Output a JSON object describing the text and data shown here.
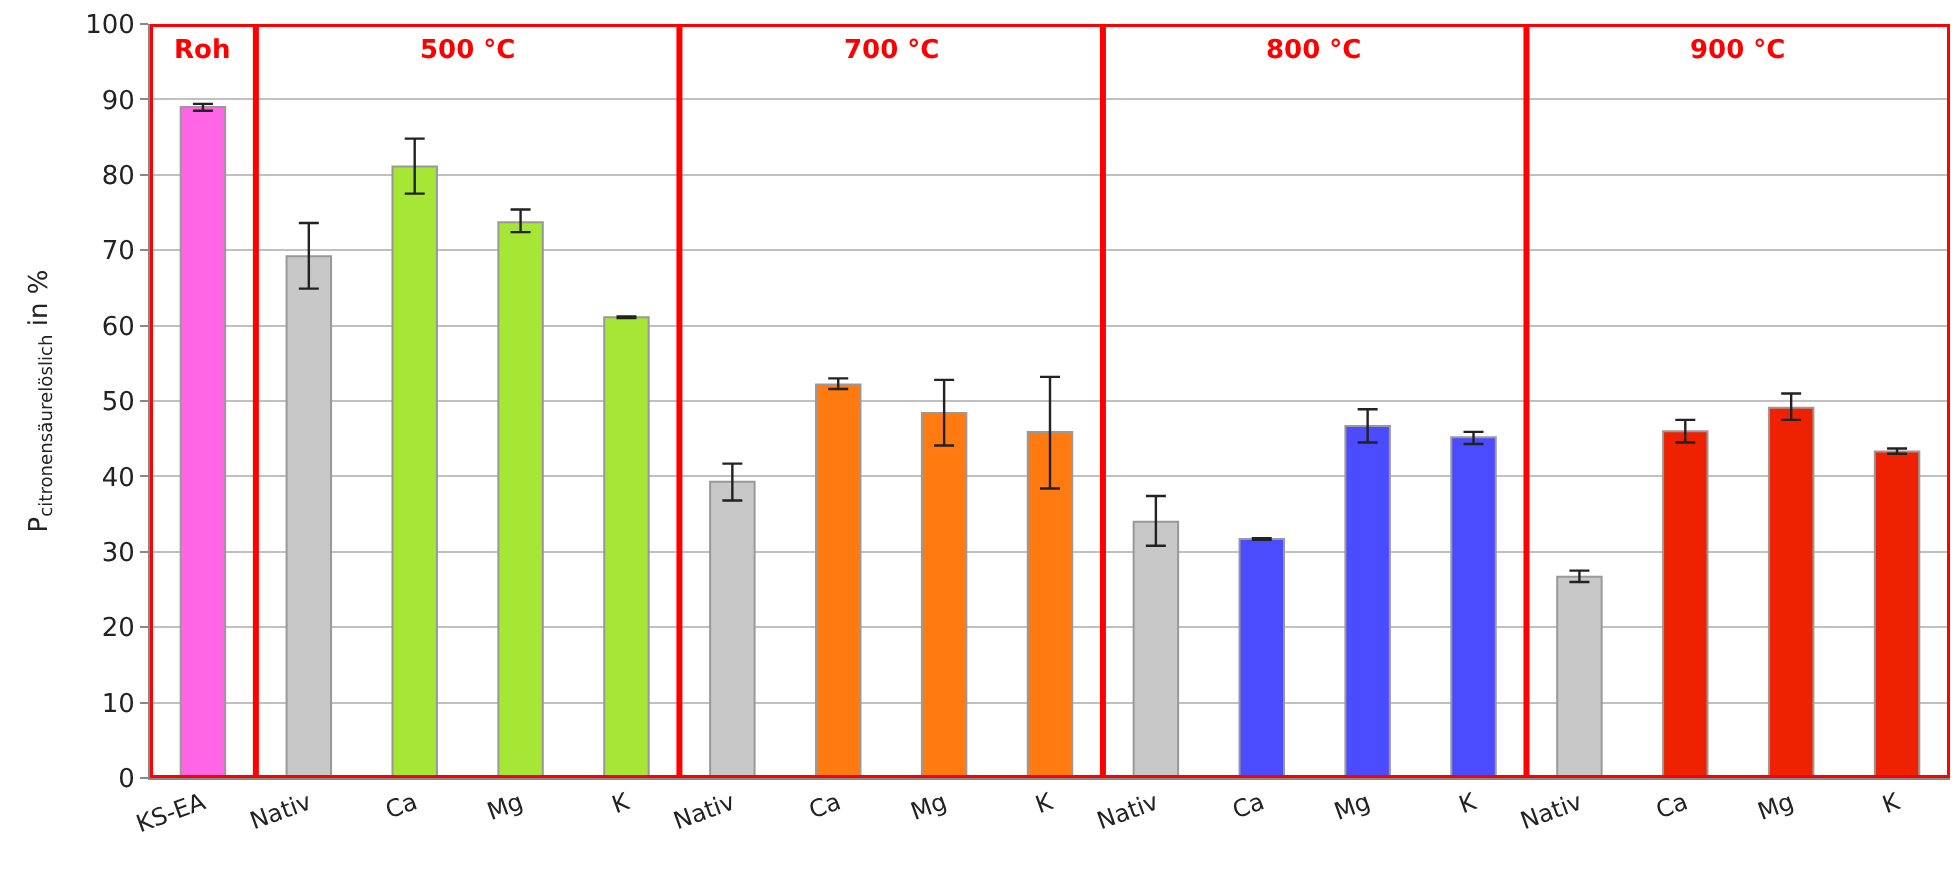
{
  "chart_data": {
    "type": "bar",
    "ylabel": "P$_{citronensäurelöslich}$ in %",
    "categories": [
      "KS-EA",
      "Nativ",
      "Ca",
      "Mg",
      "K",
      "Nativ",
      "Ca",
      "Mg",
      "K",
      "Nativ",
      "Ca",
      "Mg",
      "K",
      "Nativ",
      "Ca",
      "Mg",
      "K"
    ],
    "values": [
      89.0,
      69.2,
      81.1,
      73.7,
      61.1,
      39.3,
      52.2,
      48.4,
      45.9,
      34.0,
      31.7,
      46.7,
      45.2,
      26.7,
      46.0,
      49.1,
      43.3
    ],
    "colors": [
      "#ff66e6",
      "#c8c8c8",
      "#a6e635",
      "#a6e635",
      "#a6e635",
      "#c8c8c8",
      "#ff7a10",
      "#ff7a10",
      "#ff7a10",
      "#c8c8c8",
      "#4b4bff",
      "#4b4bff",
      "#4b4bff",
      "#c8c8c8",
      "#ee2200",
      "#ee2200",
      "#ee2200"
    ],
    "errors": [
      [
        88.5,
        89.4
      ],
      [
        64.9,
        73.6
      ],
      [
        77.5,
        84.8
      ],
      [
        72.4,
        75.4
      ],
      [
        61.0,
        61.2
      ],
      [
        36.8,
        41.7
      ],
      [
        51.6,
        53.0
      ],
      [
        44.1,
        52.8
      ],
      [
        38.4,
        53.2
      ],
      [
        30.8,
        37.4
      ],
      [
        31.6,
        31.8
      ],
      [
        44.5,
        48.9
      ],
      [
        44.3,
        45.9
      ],
      [
        26.0,
        27.5
      ],
      [
        44.5,
        47.5
      ],
      [
        47.5,
        51.0
      ],
      [
        43.0,
        43.7
      ]
    ],
    "ylim": [
      0,
      100
    ],
    "yticks": [
      0,
      10,
      20,
      30,
      40,
      50,
      60,
      70,
      80,
      90,
      100
    ],
    "grid": "y",
    "annotations": [
      "Roh",
      "500 °C",
      "700 °C",
      "800 °C",
      "900 °C"
    ]
  }
}
